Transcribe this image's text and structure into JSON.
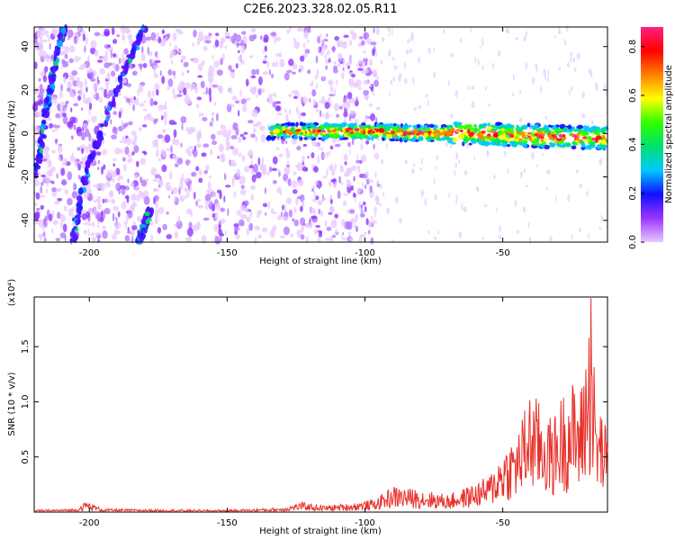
{
  "figure": {
    "title": "C2E6.2023.328.02.05.R11"
  },
  "chart_data": [
    {
      "type": "heatmap",
      "title": "C2E6.2023.328.02.05.R11",
      "xlabel": "Height of straight line (km)",
      "ylabel": "Frequency (Hz)",
      "xlim": [
        -220,
        -12
      ],
      "ylim": [
        -50,
        49
      ],
      "x_ticks": [
        -200,
        -150,
        -100,
        -50
      ],
      "y_ticks": [
        -40,
        -20,
        0,
        20,
        40
      ],
      "colorbar": {
        "label": "Normalized spectral amplitude",
        "range": [
          0,
          0.88
        ],
        "ticks": [
          0.0,
          0.2,
          0.4,
          0.6,
          0.8
        ],
        "colormap": [
          "#e8c8ff",
          "#9a35ff",
          "#1010ff",
          "#00c8ff",
          "#00e070",
          "#30ff00",
          "#ffff00",
          "#ff8000",
          "#ff0000",
          "#ff2080"
        ]
      },
      "features": {
        "left_band_1": [
          [
            -221,
            -28
          ],
          [
            -218,
            -10
          ],
          [
            -215,
            15
          ],
          [
            -212,
            35
          ],
          [
            -209,
            49
          ]
        ],
        "left_band_2": [
          [
            -206,
            -50
          ],
          [
            -204,
            -35
          ],
          [
            -201,
            -18
          ],
          [
            -196,
            0
          ],
          [
            -190,
            20
          ],
          [
            -184,
            38
          ],
          [
            -180,
            49
          ]
        ],
        "left_band_3": [
          [
            -182,
            -50
          ],
          [
            -178,
            -35
          ]
        ],
        "signal_band_x": [
          -135,
          -12
        ],
        "signal_band_center": [
          [
            -135,
            1
          ],
          [
            -100,
            1
          ],
          [
            -80,
            0
          ],
          [
            -60,
            0
          ],
          [
            -40,
            -1
          ],
          [
            -20,
            -2
          ],
          [
            -12,
            -2
          ]
        ]
      },
      "grid": false
    },
    {
      "type": "line",
      "xlabel": "Height of straight line (km)",
      "ylabel": "SNR (10 * v/v)",
      "y_multiplier": "(x10⁴)",
      "xlim": [
        -220,
        -12
      ],
      "ylim": [
        0,
        1.95
      ],
      "x_ticks": [
        -200,
        -150,
        -100,
        -50
      ],
      "y_ticks": [
        0.5,
        1.0,
        1.5
      ],
      "color": "#e8302a",
      "series": [
        {
          "envelope_points": [
            [
              -220,
              0.02
            ],
            [
              -205,
              0.03
            ],
            [
              -201,
              0.1
            ],
            [
              -195,
              0.03
            ],
            [
              -150,
              0.02
            ],
            [
              -130,
              0.04
            ],
            [
              -123,
              0.09
            ],
            [
              -115,
              0.06
            ],
            [
              -105,
              0.08
            ],
            [
              -96,
              0.12
            ],
            [
              -90,
              0.24
            ],
            [
              -85,
              0.22
            ],
            [
              -80,
              0.21
            ],
            [
              -70,
              0.16
            ],
            [
              -62,
              0.24
            ],
            [
              -55,
              0.33
            ],
            [
              -50,
              0.58
            ],
            [
              -45,
              0.72
            ],
            [
              -40,
              1.12
            ],
            [
              -36,
              0.98
            ],
            [
              -32,
              0.84
            ],
            [
              -28,
              1.12
            ],
            [
              -25,
              1.2
            ],
            [
              -22,
              1.08
            ],
            [
              -18,
              1.95
            ],
            [
              -16,
              0.95
            ],
            [
              -14,
              0.95
            ],
            [
              -12,
              0.7
            ]
          ]
        }
      ],
      "grid": false
    }
  ]
}
